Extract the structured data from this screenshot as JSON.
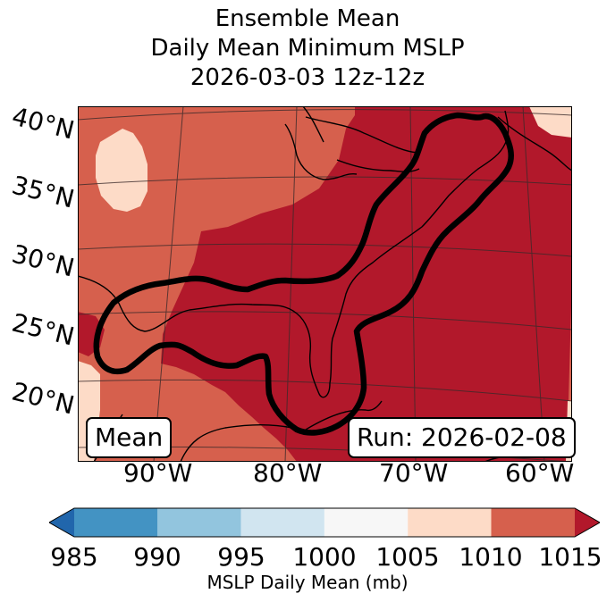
{
  "title": {
    "line1": "Ensemble Mean",
    "line2": "Daily Mean Minimum MSLP",
    "line3": "2026-03-03 12z-12z"
  },
  "map": {
    "lat_labels": [
      "40°N",
      "35°N",
      "30°N",
      "25°N",
      "20°N"
    ],
    "lon_labels": [
      "90°W",
      "80°W",
      "70°W",
      "60°W"
    ],
    "mean_box": "Mean",
    "run_box": "Run: 2026-02-08",
    "fill_colors": {
      "1005-1010": "#fddbc7",
      "1010-1015": "#d6604d",
      "above-1015": "#b2182b"
    },
    "contour_color": "#000000"
  },
  "colorbar": {
    "label": "MSLP Daily Mean (mb)",
    "ticks": [
      "985",
      "990",
      "995",
      "1000",
      "1005",
      "1010",
      "1015"
    ],
    "colors": {
      "below": "#2166ac",
      "bins": [
        "#4393c3",
        "#92c5de",
        "#d1e5f0",
        "#f7f7f7",
        "#fddbc7",
        "#d6604d"
      ],
      "above": "#b2182b"
    }
  }
}
